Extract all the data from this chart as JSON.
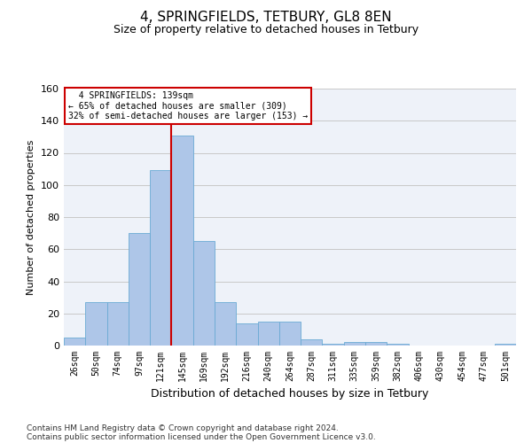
{
  "title1": "4, SPRINGFIELDS, TETBURY, GL8 8EN",
  "title2": "Size of property relative to detached houses in Tetbury",
  "xlabel": "Distribution of detached houses by size in Tetbury",
  "ylabel": "Number of detached properties",
  "bar_labels": [
    "26sqm",
    "50sqm",
    "74sqm",
    "97sqm",
    "121sqm",
    "145sqm",
    "169sqm",
    "192sqm",
    "216sqm",
    "240sqm",
    "264sqm",
    "287sqm",
    "311sqm",
    "335sqm",
    "359sqm",
    "382sqm",
    "406sqm",
    "430sqm",
    "454sqm",
    "477sqm",
    "501sqm"
  ],
  "bar_values": [
    5,
    27,
    27,
    70,
    109,
    131,
    65,
    27,
    14,
    15,
    15,
    4,
    1,
    2,
    2,
    1,
    0,
    0,
    0,
    0,
    1
  ],
  "bar_color": "#aec6e8",
  "bar_edge_color": "#6aaad4",
  "vline_x": 4.5,
  "vline_color": "#cc0000",
  "annotation_text": "  4 SPRINGFIELDS: 139sqm\n← 65% of detached houses are smaller (309)\n32% of semi-detached houses are larger (153) →",
  "annotation_box_color": "#ffffff",
  "annotation_box_edge_color": "#cc0000",
  "ylim": [
    0,
    160
  ],
  "yticks": [
    0,
    20,
    40,
    60,
    80,
    100,
    120,
    140,
    160
  ],
  "grid_color": "#c8c8c8",
  "bg_color": "#eef2f9",
  "footer1": "Contains HM Land Registry data © Crown copyright and database right 2024.",
  "footer2": "Contains public sector information licensed under the Open Government Licence v3.0.",
  "title1_fontsize": 11,
  "title2_fontsize": 9,
  "xlabel_fontsize": 9,
  "ylabel_fontsize": 8,
  "tick_fontsize": 7,
  "footer_fontsize": 6.5
}
